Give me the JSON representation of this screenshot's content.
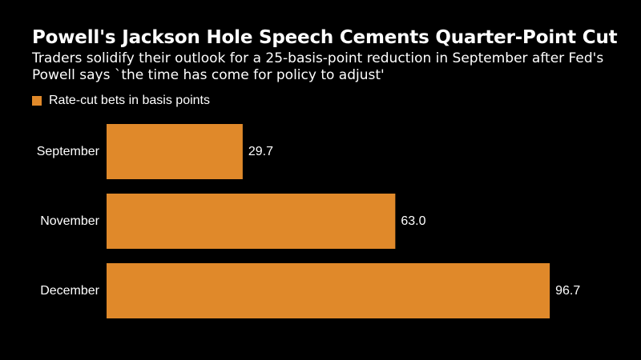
{
  "chart_data": {
    "type": "bar",
    "orientation": "horizontal",
    "title": "Powell's Jackson Hole Speech Cements Quarter-Point Cut",
    "subtitle": "Traders solidify their outlook for a 25-basis-point reduction in September after Fed's Powell says `the time has come for policy to adjust'",
    "categories": [
      "September",
      "November",
      "December"
    ],
    "series": [
      {
        "name": "Rate-cut bets in basis points",
        "values": [
          29.7,
          63.0,
          96.7
        ],
        "labels": [
          "29.7",
          "63.0",
          "96.7"
        ],
        "color": "#E0892A"
      }
    ],
    "xlim": [
      0,
      100
    ],
    "grid": false,
    "legend": "top-left"
  },
  "colors": {
    "background": "#000000",
    "text": "#FFFFFF",
    "bar": "#E0892A"
  }
}
